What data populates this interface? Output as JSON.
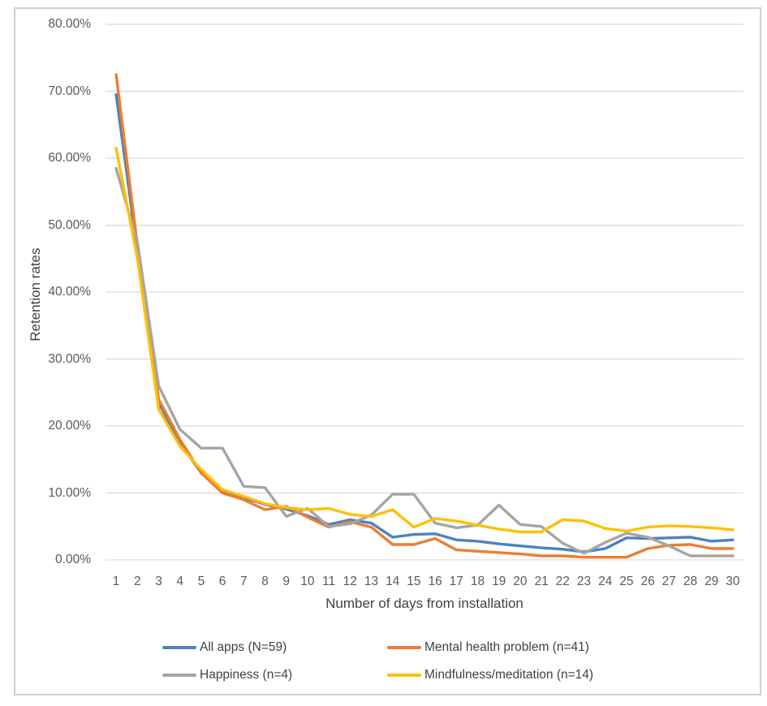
{
  "chart_data": {
    "type": "line",
    "title": "",
    "xlabel": "Number of days from installation",
    "ylabel": "Retention rates",
    "x": [
      1,
      2,
      3,
      4,
      5,
      6,
      7,
      8,
      9,
      10,
      11,
      12,
      13,
      14,
      15,
      16,
      17,
      18,
      19,
      20,
      21,
      22,
      23,
      24,
      25,
      26,
      27,
      28,
      29,
      30
    ],
    "ylim": [
      0,
      80
    ],
    "y_tick_labels": [
      "0.00%",
      "10.00%",
      "20.00%",
      "30.00%",
      "40.00%",
      "50.00%",
      "60.00%",
      "70.00%",
      "80.00%"
    ],
    "grid": true,
    "legend_position": "bottom",
    "series": [
      {
        "name": "All apps (N=59)",
        "color": "#4E81BD",
        "values": [
          69.5,
          46.0,
          23.5,
          17.5,
          13.0,
          10.3,
          9.3,
          8.3,
          7.6,
          6.6,
          5.3,
          6.0,
          5.5,
          3.4,
          3.8,
          3.9,
          3.0,
          2.8,
          2.4,
          2.1,
          1.8,
          1.6,
          1.2,
          1.7,
          3.3,
          3.2,
          3.3,
          3.4,
          2.8,
          3.0
        ]
      },
      {
        "name": "Mental health problem (n=41)",
        "color": "#ED7D31",
        "values": [
          72.5,
          47.0,
          24.0,
          18.0,
          13.0,
          10.0,
          9.0,
          7.5,
          8.0,
          6.4,
          4.9,
          5.7,
          4.9,
          2.3,
          2.3,
          3.2,
          1.5,
          1.3,
          1.1,
          0.9,
          0.6,
          0.6,
          0.4,
          0.4,
          0.4,
          1.7,
          2.2,
          2.3,
          1.7,
          1.7
        ]
      },
      {
        "name": "Happiness (n=4)",
        "color": "#A5A5A5",
        "values": [
          58.5,
          47.5,
          26.0,
          19.5,
          16.7,
          16.7,
          11.0,
          10.8,
          6.5,
          7.7,
          5.0,
          5.4,
          6.7,
          9.8,
          9.8,
          5.5,
          4.8,
          5.2,
          8.2,
          5.3,
          5.0,
          2.5,
          1.0,
          2.6,
          4.0,
          3.4,
          2.1,
          0.6,
          0.6,
          0.6
        ]
      },
      {
        "name": "Mindfulness/meditation (n=14)",
        "color": "#FFC000",
        "values": [
          61.5,
          45.0,
          22.5,
          17.0,
          13.5,
          10.5,
          9.5,
          8.4,
          7.8,
          7.5,
          7.7,
          6.8,
          6.5,
          7.5,
          4.9,
          6.2,
          5.8,
          5.2,
          4.6,
          4.2,
          4.2,
          6.0,
          5.8,
          4.7,
          4.3,
          4.9,
          5.1,
          5.0,
          4.8,
          4.5
        ]
      }
    ]
  },
  "axes": {
    "xlabel": "Number of days from installation",
    "ylabel": "Retention rates"
  },
  "colors": {
    "gridline": "#D9D9D9",
    "tick_text": "#595959",
    "axis_title_text": "#404040",
    "frame_border": "#CFCFCF",
    "background": "#FFFFFF"
  }
}
